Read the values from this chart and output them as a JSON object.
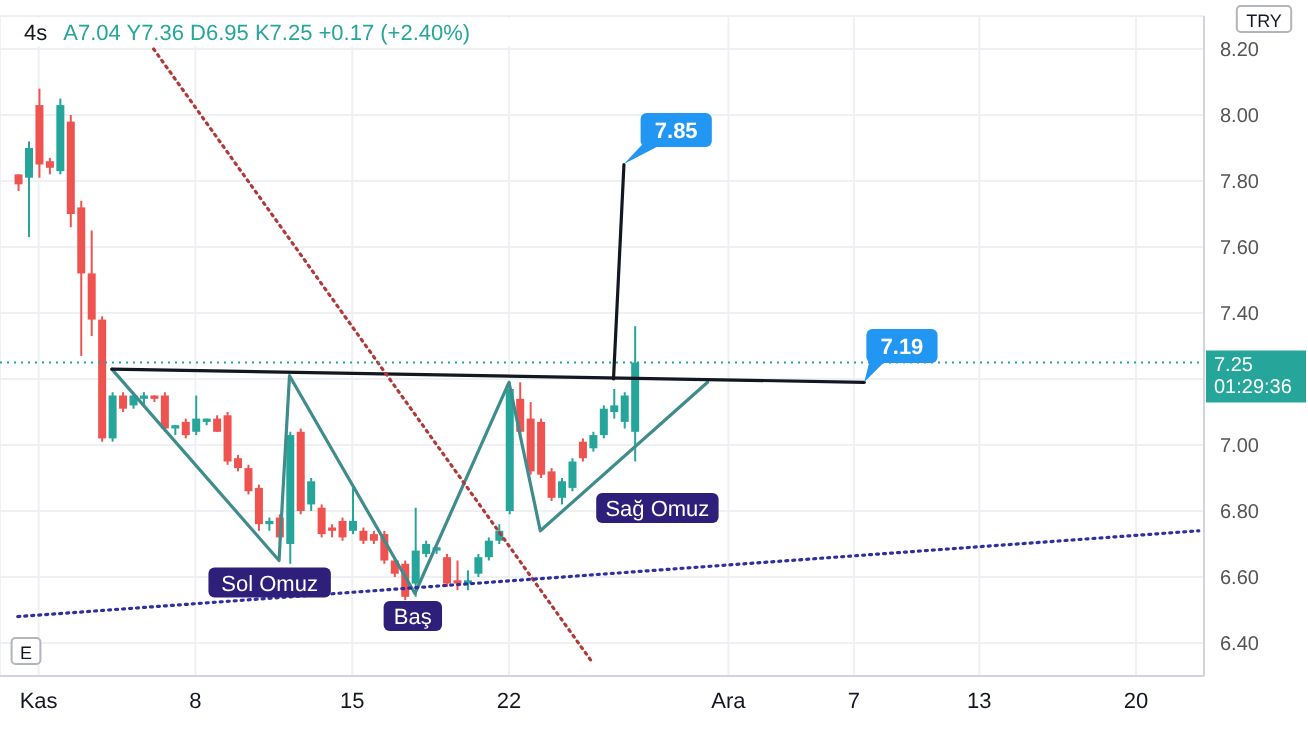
{
  "chart_data": {
    "type": "candlestick",
    "title": "4s",
    "subtitle": "A7.04 Y7.36 D6.95 K7.25 +0.17 (+2.40%)",
    "categories": [
      null,
      null,
      "Kas",
      null,
      null,
      null,
      null,
      null,
      null,
      null,
      null,
      null,
      null,
      null,
      null,
      null,
      null,
      "8",
      null,
      null,
      null,
      null,
      null,
      null,
      null,
      null,
      null,
      null,
      null,
      null,
      null,
      null,
      "15",
      null,
      null,
      null,
      null,
      null,
      null,
      null,
      null,
      null,
      null,
      null,
      null,
      null,
      null,
      "22",
      null,
      null,
      null,
      null,
      null,
      null,
      null,
      null,
      null,
      null,
      null,
      null,
      null,
      null,
      null,
      null,
      null,
      null,
      null,
      null,
      "Ara",
      null,
      null,
      null,
      null,
      null,
      null,
      null,
      null,
      null,
      null,
      null,
      "7",
      null,
      null,
      null,
      null,
      null,
      null,
      null,
      null,
      null,
      null,
      null,
      "13",
      null,
      null,
      null,
      null,
      null,
      null,
      null,
      null,
      null,
      null,
      null,
      null,
      null,
      null,
      "20",
      null,
      null,
      null,
      null,
      null,
      null
    ],
    "ohlc": [
      [
        7.82,
        7.82,
        7.77,
        7.79
      ],
      [
        7.81,
        7.92,
        7.63,
        7.9
      ],
      [
        8.03,
        8.08,
        7.81,
        7.85
      ],
      [
        7.86,
        7.87,
        7.82,
        7.84
      ],
      [
        7.83,
        8.05,
        7.82,
        8.03
      ],
      [
        7.98,
        8.0,
        7.66,
        7.7
      ],
      [
        7.72,
        7.74,
        7.27,
        7.52
      ],
      [
        7.52,
        7.65,
        7.33,
        7.38
      ],
      [
        7.38,
        7.39,
        7.01,
        7.02
      ],
      [
        7.02,
        7.16,
        7.01,
        7.15
      ],
      [
        7.15,
        7.16,
        7.1,
        7.11
      ],
      [
        7.12,
        7.16,
        7.11,
        7.15
      ],
      [
        7.14,
        7.16,
        7.12,
        7.15
      ],
      [
        7.15,
        7.15,
        7.13,
        7.14
      ],
      [
        7.15,
        7.16,
        7.04,
        7.05
      ],
      [
        7.05,
        7.06,
        7.03,
        7.06
      ],
      [
        7.07,
        7.08,
        7.02,
        7.03
      ],
      [
        7.04,
        7.15,
        7.03,
        7.08
      ],
      [
        7.07,
        7.08,
        7.06,
        7.08
      ],
      [
        7.08,
        7.09,
        7.04,
        7.04
      ],
      [
        7.09,
        7.1,
        6.94,
        6.95
      ],
      [
        6.96,
        6.97,
        6.92,
        6.93
      ],
      [
        6.93,
        6.94,
        6.85,
        6.86
      ],
      [
        6.87,
        6.88,
        6.74,
        6.76
      ],
      [
        6.76,
        6.78,
        6.74,
        6.77
      ],
      [
        6.78,
        6.79,
        6.7,
        6.72
      ],
      [
        6.7,
        7.04,
        6.64,
        7.03
      ],
      [
        7.04,
        7.05,
        6.79,
        6.8
      ],
      [
        6.82,
        6.9,
        6.8,
        6.89
      ],
      [
        6.81,
        6.82,
        6.72,
        6.73
      ],
      [
        6.75,
        6.76,
        6.72,
        6.74
      ],
      [
        6.77,
        6.78,
        6.71,
        6.72
      ],
      [
        6.74,
        6.87,
        6.73,
        6.77
      ],
      [
        6.74,
        6.75,
        6.7,
        6.71
      ],
      [
        6.73,
        6.74,
        6.7,
        6.71
      ],
      [
        6.73,
        6.74,
        6.64,
        6.65
      ],
      [
        6.65,
        6.66,
        6.6,
        6.61
      ],
      [
        6.64,
        6.65,
        6.53,
        6.54
      ],
      [
        6.58,
        6.81,
        6.54,
        6.68
      ],
      [
        6.67,
        6.71,
        6.66,
        6.7
      ],
      [
        6.68,
        6.69,
        6.67,
        6.69
      ],
      [
        6.66,
        6.67,
        6.57,
        6.58
      ],
      [
        6.59,
        6.65,
        6.56,
        6.58
      ],
      [
        6.58,
        6.62,
        6.56,
        6.59
      ],
      [
        6.61,
        6.67,
        6.6,
        6.66
      ],
      [
        6.66,
        6.72,
        6.65,
        6.71
      ],
      [
        6.71,
        6.76,
        6.7,
        6.74
      ],
      [
        6.8,
        7.19,
        6.79,
        7.17
      ],
      [
        7.14,
        7.19,
        7.03,
        7.04
      ],
      [
        7.08,
        7.13,
        6.91,
        6.92
      ],
      [
        7.07,
        7.08,
        6.9,
        6.91
      ],
      [
        6.92,
        6.93,
        6.83,
        6.84
      ],
      [
        6.84,
        6.9,
        6.82,
        6.89
      ],
      [
        6.87,
        6.96,
        6.86,
        6.95
      ],
      [
        7.01,
        7.02,
        6.95,
        6.96
      ],
      [
        6.99,
        7.04,
        6.98,
        7.03
      ],
      [
        7.03,
        7.12,
        7.02,
        7.11
      ],
      [
        7.1,
        7.17,
        7.08,
        7.12
      ],
      [
        7.07,
        7.16,
        7.05,
        7.15
      ],
      [
        7.04,
        7.36,
        6.95,
        7.25
      ],
      null,
      null,
      null,
      null,
      null,
      null,
      null,
      null,
      null,
      null,
      null,
      null,
      null,
      null,
      null,
      null,
      null,
      null,
      null,
      null,
      null,
      null,
      null,
      null,
      null,
      null,
      null,
      null,
      null,
      null,
      null,
      null,
      null,
      null,
      null,
      null,
      null,
      null,
      null,
      null,
      null,
      null,
      null,
      null,
      null,
      null,
      null,
      null,
      null,
      null,
      null,
      null,
      null,
      null
    ],
    "colors": [
      "#ef5350",
      "#26a69a",
      "#ef5350",
      "#ef5350",
      "#26a69a",
      "#ef5350",
      "#ef5350",
      "#ef5350",
      "#ef5350",
      "#26a69a",
      "#ef5350",
      "#26a69a",
      "#26a69a",
      "#ef5350",
      "#ef5350",
      "#26a69a",
      "#ef5350",
      "#26a69a",
      "#26a69a",
      "#ef5350",
      "#ef5350",
      "#ef5350",
      "#ef5350",
      "#ef5350",
      "#26a69a",
      "#ef5350",
      "#26a69a",
      "#ef5350",
      "#26a69a",
      "#ef5350",
      "#ef5350",
      "#ef5350",
      "#26a69a",
      "#ef5350",
      "#ef5350",
      "#ef5350",
      "#ef5350",
      "#ef5350",
      "#26a69a",
      "#26a69a",
      "#26a69a",
      "#ef5350",
      "#ef5350",
      "#26a69a",
      "#26a69a",
      "#26a69a",
      "#26a69a",
      "#26a69a",
      "#ef5350",
      "#ef5350",
      "#ef5350",
      "#ef5350",
      "#26a69a",
      "#26a69a",
      "#ef5350",
      "#26a69a",
      "#26a69a",
      "#26a69a",
      "#26a69a",
      "#26a69a",
      null,
      null,
      null,
      null,
      null,
      null,
      null,
      null,
      null,
      null,
      null,
      null,
      null,
      null,
      null,
      null,
      null,
      null,
      null,
      null,
      null,
      null,
      null,
      null,
      null,
      null,
      null,
      null,
      null,
      null,
      null,
      null,
      null,
      null,
      null,
      null,
      null,
      null,
      null,
      null,
      null,
      null,
      null,
      null,
      null,
      null,
      null,
      null,
      null,
      null,
      null,
      null,
      null,
      null
    ],
    "series": [
      {
        "type": "line",
        "color": "#3f8c8c",
        "line_style": "solid",
        "values": [
          null,
          null,
          null,
          null,
          null,
          null,
          null,
          null,
          null,
          7.23,
          null,
          null,
          null,
          null,
          null,
          null,
          null,
          null,
          null,
          null,
          null,
          null,
          null,
          null,
          null,
          6.65,
          7.21,
          null,
          null,
          null,
          null,
          null,
          null,
          null,
          null,
          null,
          null,
          null,
          6.55,
          null,
          null,
          null,
          null,
          null,
          null,
          null,
          null,
          7.19,
          null,
          null,
          6.74,
          null,
          null,
          null,
          null,
          null,
          null,
          null,
          null,
          null,
          null,
          null,
          null,
          null,
          null,
          null,
          7.19,
          null,
          null,
          null,
          null,
          null,
          null,
          null,
          null,
          null,
          null,
          null,
          null,
          null,
          null,
          null,
          null,
          null,
          null,
          null,
          null,
          null,
          null,
          null,
          null,
          null,
          null,
          null,
          null,
          null,
          null,
          null,
          null,
          null,
          null,
          null,
          null,
          null,
          null,
          null,
          null,
          null,
          null,
          null,
          null,
          null,
          null,
          null
        ]
      },
      {
        "type": "line",
        "color": "#131722",
        "line_style": "solid",
        "values": [
          null,
          null,
          null,
          null,
          null,
          null,
          null,
          null,
          null,
          7.23,
          null,
          null,
          null,
          null,
          null,
          null,
          null,
          null,
          null,
          null,
          null,
          null,
          null,
          null,
          null,
          null,
          null,
          null,
          null,
          null,
          null,
          null,
          null,
          null,
          null,
          null,
          null,
          null,
          null,
          null,
          null,
          null,
          null,
          null,
          null,
          null,
          null,
          null,
          null,
          null,
          null,
          null,
          null,
          null,
          null,
          null,
          null,
          null,
          null,
          null,
          null,
          null,
          null,
          null,
          null,
          null,
          null,
          null,
          null,
          null,
          null,
          null,
          null,
          null,
          null,
          null,
          null,
          null,
          null,
          null,
          null,
          7.19,
          null,
          null,
          null,
          null,
          null,
          null,
          null,
          null,
          null,
          null,
          null,
          null,
          null,
          null,
          null,
          null,
          null,
          null,
          null,
          null,
          null,
          null,
          null,
          null,
          null,
          null,
          null,
          null,
          null,
          null,
          null,
          null
        ]
      },
      {
        "type": "line",
        "color": "#b03a3a",
        "line_style": "dotted",
        "values": [
          null,
          null,
          null,
          null,
          null,
          null,
          null,
          null,
          null,
          null,
          null,
          null,
          null,
          8.2,
          null,
          null,
          null,
          null,
          null,
          null,
          null,
          null,
          null,
          null,
          null,
          null,
          null,
          null,
          null,
          null,
          null,
          null,
          null,
          null,
          null,
          null,
          null,
          null,
          null,
          null,
          null,
          null,
          null,
          null,
          null,
          null,
          null,
          null,
          null,
          null,
          null,
          null,
          null,
          null,
          null,
          6.34,
          null,
          null,
          null,
          null,
          null,
          null,
          null,
          null,
          null,
          null,
          null,
          null,
          null,
          null,
          null,
          null,
          null,
          null,
          null,
          null,
          null,
          null,
          null,
          null,
          null,
          null,
          null,
          null,
          null,
          null,
          null,
          null,
          null,
          null,
          null,
          null,
          null,
          null,
          null,
          null,
          null,
          null,
          null,
          null,
          null,
          null,
          null,
          null,
          null,
          null,
          null,
          null,
          null,
          null,
          null,
          null,
          null,
          null
        ]
      },
      {
        "type": "line",
        "color": "#2f2fa0",
        "line_style": "dotted",
        "values": [
          6.48,
          null,
          null,
          null,
          null,
          null,
          null,
          null,
          null,
          null,
          null,
          null,
          null,
          null,
          null,
          null,
          null,
          null,
          null,
          null,
          null,
          null,
          null,
          null,
          null,
          null,
          null,
          null,
          null,
          null,
          null,
          null,
          null,
          null,
          null,
          null,
          null,
          null,
          null,
          null,
          null,
          null,
          null,
          null,
          null,
          null,
          null,
          null,
          null,
          null,
          null,
          null,
          null,
          null,
          null,
          null,
          null,
          null,
          null,
          null,
          null,
          null,
          null,
          null,
          null,
          null,
          null,
          null,
          null,
          null,
          null,
          null,
          null,
          null,
          null,
          null,
          null,
          null,
          null,
          null,
          null,
          null,
          null,
          null,
          null,
          null,
          null,
          null,
          null,
          null,
          null,
          null,
          null,
          null,
          null,
          null,
          null,
          null,
          null,
          null,
          null,
          null,
          null,
          null,
          null,
          null,
          null,
          null,
          null,
          null,
          null,
          null,
          null,
          6.74
        ]
      },
      {
        "type": "line",
        "color": "#131722",
        "line_style": "solid",
        "values": [
          null,
          null,
          null,
          null,
          null,
          null,
          null,
          null,
          null,
          null,
          null,
          null,
          null,
          null,
          null,
          null,
          null,
          null,
          null,
          null,
          null,
          null,
          null,
          null,
          null,
          null,
          null,
          null,
          null,
          null,
          null,
          null,
          null,
          null,
          null,
          null,
          null,
          null,
          null,
          null,
          null,
          null,
          null,
          null,
          null,
          null,
          null,
          null,
          null,
          null,
          null,
          null,
          null,
          null,
          null,
          null,
          null,
          7.2,
          7.85,
          null,
          null,
          null,
          null,
          null,
          null,
          null,
          null,
          null,
          null,
          null,
          null,
          null,
          null,
          null,
          null,
          null,
          null,
          null,
          null,
          null,
          null,
          null,
          null,
          null,
          null,
          null,
          null,
          null,
          null,
          null,
          null,
          null,
          null,
          null,
          null,
          null,
          null,
          null,
          null,
          null,
          null,
          null,
          null,
          null,
          null,
          null,
          null,
          null,
          null,
          null,
          null,
          null,
          null,
          null
        ]
      }
    ],
    "ylim": [
      6.3,
      8.3
    ],
    "yticks": [
      {
        "value": 6.4,
        "label": "6.40"
      },
      {
        "value": 6.6,
        "label": "6.60"
      },
      {
        "value": 6.8,
        "label": "6.80"
      },
      {
        "value": 7.0,
        "label": "7.00"
      },
      {
        "value": 7.2,
        "label": null
      },
      {
        "value": 7.4,
        "label": "7.40"
      },
      {
        "value": 7.6,
        "label": "7.60"
      },
      {
        "value": 7.8,
        "label": "7.80"
      },
      {
        "value": 8.0,
        "label": "8.00"
      },
      {
        "value": 8.2,
        "label": "8.20"
      }
    ],
    "grid": true,
    "ref_lines": [
      {
        "axis": "y",
        "value": 7.25,
        "label": "7.25 01:29:36",
        "color": "#26a69a",
        "line_style": "dotted"
      }
    ],
    "annotations": [
      "7.85",
      "7.19",
      {
        "text": "Sol Omuz",
        "y": 6.65
      },
      {
        "text": "Baş",
        "y": 6.53
      },
      "Sağ Omuz",
      "TRY",
      "E"
    ]
  }
}
